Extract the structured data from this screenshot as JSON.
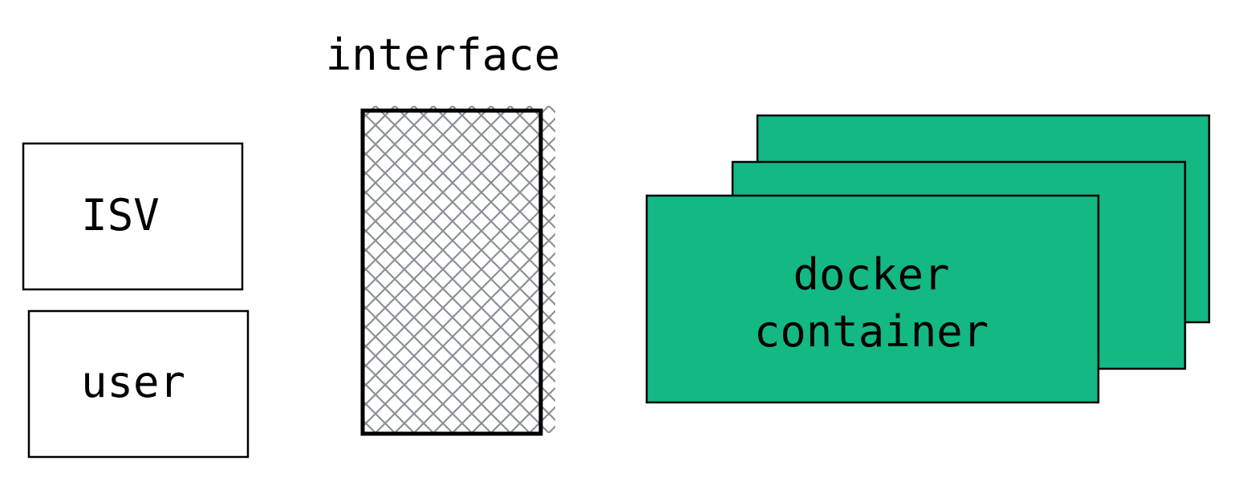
{
  "diagram": {
    "interface_label": "interface",
    "isv_label": "ISV",
    "user_label": "user",
    "container_label_line1": "docker",
    "container_label_line2": "container"
  },
  "colors": {
    "container_fill": "#14b885",
    "stroke": "#000000",
    "hatch": "#8a9096",
    "background": "#ffffff"
  }
}
